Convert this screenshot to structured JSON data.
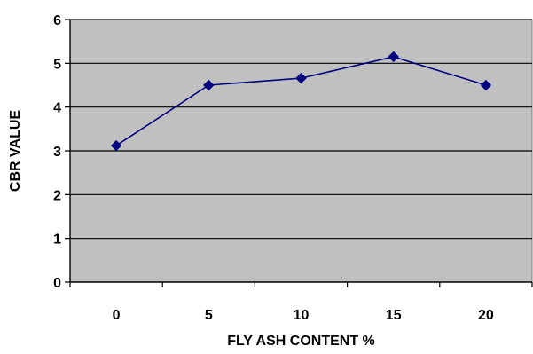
{
  "colors": {
    "plot_background": "#c0c0c0",
    "grid": "#000000",
    "series_line": "#000080",
    "markers": "#000080",
    "axis": "#000000"
  },
  "chart_data": {
    "type": "line",
    "title": "",
    "xlabel": "FLY ASH CONTENT %",
    "ylabel": "CBR VALUE",
    "categories": [
      "0",
      "5",
      "10",
      "15",
      "20"
    ],
    "series": [
      {
        "values": [
          3.12,
          4.5,
          4.66,
          5.15,
          4.5
        ],
        "marker": "diamond"
      }
    ],
    "ylim": [
      0,
      6
    ],
    "yticks": [
      "0",
      "1",
      "2",
      "3",
      "4",
      "5",
      "6"
    ],
    "grid": "horizontal",
    "legend": "none"
  }
}
